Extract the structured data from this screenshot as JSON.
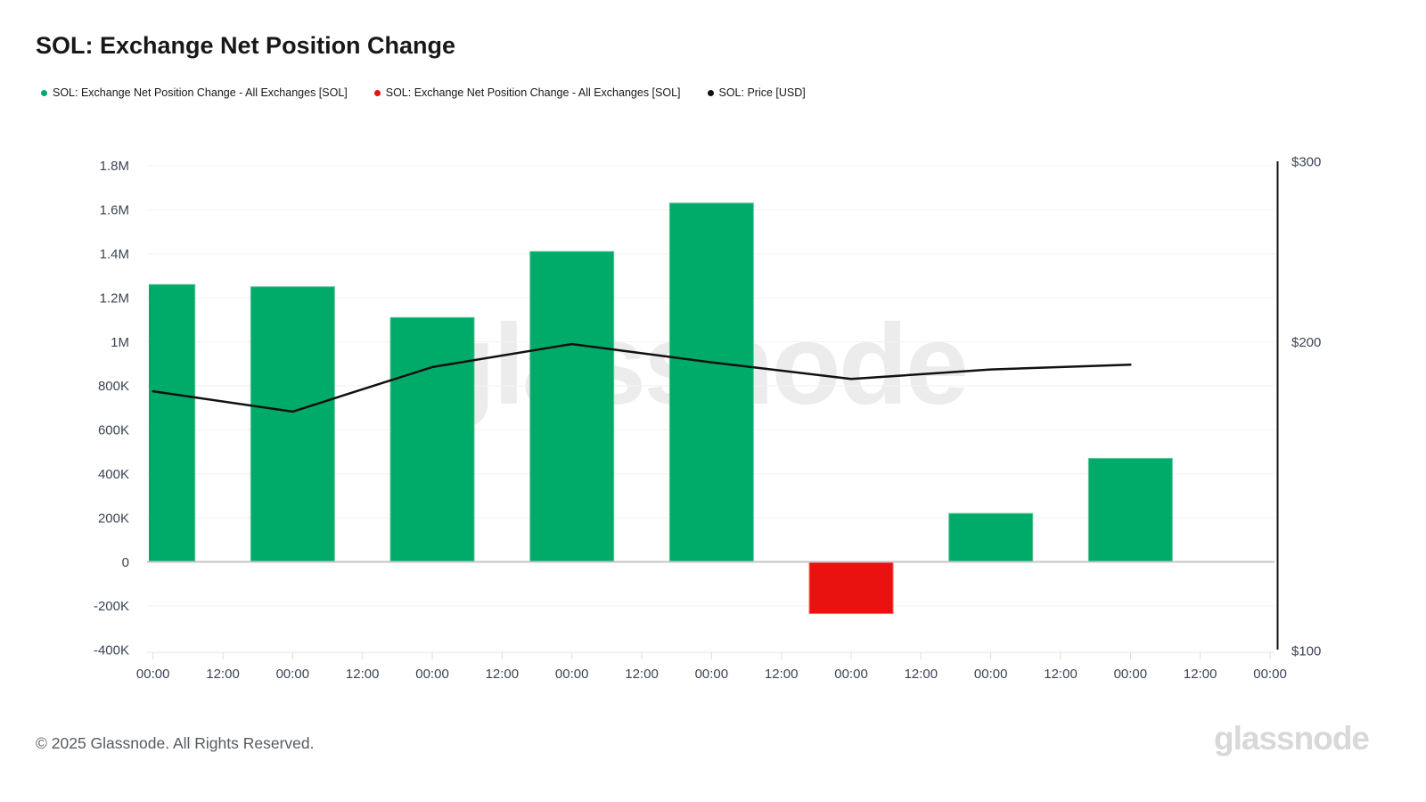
{
  "header": {
    "title": "SOL: Exchange Net Position Change"
  },
  "legend": {
    "items": [
      {
        "label": "SOL: Exchange Net Position Change - All Exchanges [SOL]",
        "color": "#00ab69"
      },
      {
        "label": "SOL: Exchange Net Position Change - All Exchanges [SOL]",
        "color": "#ea1111"
      },
      {
        "label": "SOL: Price [USD]",
        "color": "#111111"
      }
    ]
  },
  "watermark": {
    "text": "glassnode"
  },
  "footer": {
    "copyright": "© 2025 Glassnode. All Rights Reserved.",
    "brand": "glassnode"
  },
  "chart_data": {
    "type": "bar",
    "title": "SOL: Exchange Net Position Change",
    "x_axis": {
      "tick_labels": [
        "00:00",
        "12:00",
        "00:00",
        "12:00",
        "00:00",
        "12:00",
        "00:00",
        "12:00",
        "00:00",
        "12:00",
        "00:00",
        "12:00",
        "00:00",
        "12:00",
        "00:00",
        "12:00",
        "00:00"
      ],
      "note": "ticks every 12 hours; bars plotted daily at 00:00"
    },
    "left_y_axis": {
      "tick_labels": [
        "1.8M",
        "1.6M",
        "1.4M",
        "1.2M",
        "1M",
        "800K",
        "600K",
        "400K",
        "200K",
        "0",
        "-200K",
        "-400K"
      ],
      "tick_values": [
        1800000,
        1600000,
        1400000,
        1200000,
        1000000,
        800000,
        600000,
        400000,
        200000,
        0,
        -200000,
        -400000
      ],
      "min": -400000,
      "max": 1800000,
      "scale": "linear",
      "unit": "SOL"
    },
    "right_y_axis": {
      "tick_labels": [
        "$300",
        "$200",
        "$100"
      ],
      "tick_values": [
        300,
        200,
        100
      ],
      "min": 100,
      "max": 300,
      "scale": "log",
      "unit": "USD"
    },
    "grid": true,
    "legend_position": "top-left",
    "series": [
      {
        "name": "SOL: Exchange Net Position Change - All Exchanges [SOL]",
        "type": "bar",
        "axis": "left",
        "values": [
          1260000,
          1250000,
          1110000,
          1410000,
          1630000,
          -235000,
          220000,
          470000
        ],
        "positive_color": "#00ab69",
        "negative_color": "#ea1111"
      },
      {
        "name": "SOL: Price [USD]",
        "type": "line",
        "axis": "right",
        "values": [
          179,
          171,
          189,
          199,
          191,
          184,
          188,
          190
        ],
        "color": "#111111"
      }
    ]
  }
}
